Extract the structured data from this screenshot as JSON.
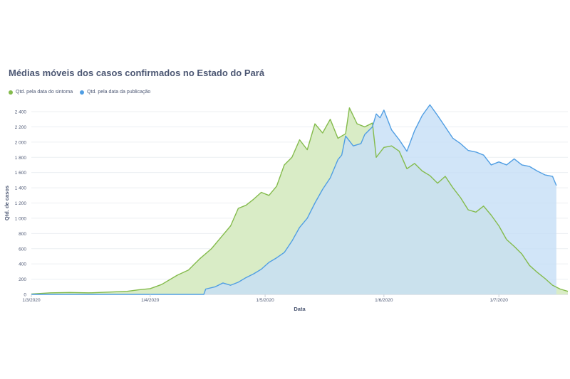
{
  "chart_data": {
    "type": "area",
    "title": "Médias móveis dos casos confirmados no Estado do Pará",
    "xlabel": "Data",
    "ylabel": "Qtd. de casos",
    "ylim": [
      0,
      2400
    ],
    "y_ticks": [
      0,
      200,
      400,
      600,
      800,
      1000,
      1200,
      1400,
      1600,
      1800,
      2000,
      2200,
      2400
    ],
    "y_tick_labels": [
      "0",
      "200",
      "400",
      "600",
      "800",
      "1 000",
      "1 200",
      "1 400",
      "1 600",
      "1 800",
      "2 000",
      "2 200",
      "2 400"
    ],
    "x_ticks": [
      0,
      31,
      61,
      92,
      122
    ],
    "x_tick_labels": [
      "1/3/2020",
      "1/4/2020",
      "1/5/2020",
      "1/6/2020",
      "1/7/2020"
    ],
    "grid": true,
    "legend_position": "top-left",
    "series": [
      {
        "name": "Qtd. pela data do sintoma",
        "color": "#84bb4c",
        "fill": "#d9ecc6",
        "points": [
          [
            0,
            5
          ],
          [
            5,
            20
          ],
          [
            10,
            25
          ],
          [
            15,
            20
          ],
          [
            20,
            30
          ],
          [
            25,
            40
          ],
          [
            28,
            60
          ],
          [
            31,
            75
          ],
          [
            34,
            130
          ],
          [
            38,
            250
          ],
          [
            41,
            320
          ],
          [
            44,
            470
          ],
          [
            47,
            600
          ],
          [
            50,
            780
          ],
          [
            52,
            900
          ],
          [
            54,
            1130
          ],
          [
            56,
            1170
          ],
          [
            58,
            1250
          ],
          [
            60,
            1340
          ],
          [
            62,
            1300
          ],
          [
            64,
            1420
          ],
          [
            66,
            1700
          ],
          [
            68,
            1800
          ],
          [
            70,
            2030
          ],
          [
            72,
            1900
          ],
          [
            74,
            2240
          ],
          [
            76,
            2120
          ],
          [
            78,
            2300
          ],
          [
            80,
            2050
          ],
          [
            82,
            2110
          ],
          [
            83,
            2450
          ],
          [
            85,
            2240
          ],
          [
            87,
            2200
          ],
          [
            89,
            2250
          ],
          [
            90,
            1800
          ],
          [
            92,
            1930
          ],
          [
            94,
            1950
          ],
          [
            96,
            1880
          ],
          [
            98,
            1650
          ],
          [
            100,
            1720
          ],
          [
            102,
            1620
          ],
          [
            104,
            1560
          ],
          [
            106,
            1460
          ],
          [
            108,
            1550
          ],
          [
            110,
            1400
          ],
          [
            112,
            1270
          ],
          [
            114,
            1110
          ],
          [
            116,
            1080
          ],
          [
            118,
            1160
          ],
          [
            120,
            1040
          ],
          [
            122,
            900
          ],
          [
            124,
            720
          ],
          [
            126,
            630
          ],
          [
            128,
            530
          ],
          [
            130,
            380
          ],
          [
            132,
            290
          ],
          [
            134,
            210
          ],
          [
            136,
            120
          ],
          [
            138,
            70
          ],
          [
            140,
            40
          ]
        ]
      },
      {
        "name": "Qtd. pela data da publicação",
        "color": "#509ee3",
        "fill": "#c5dff6",
        "points": [
          [
            0,
            0
          ],
          [
            45,
            0
          ],
          [
            45.5,
            70
          ],
          [
            48,
            100
          ],
          [
            50,
            150
          ],
          [
            52,
            120
          ],
          [
            54,
            160
          ],
          [
            56,
            220
          ],
          [
            58,
            270
          ],
          [
            60,
            330
          ],
          [
            62,
            420
          ],
          [
            64,
            480
          ],
          [
            66,
            550
          ],
          [
            68,
            700
          ],
          [
            70,
            880
          ],
          [
            72,
            1000
          ],
          [
            74,
            1200
          ],
          [
            76,
            1380
          ],
          [
            78,
            1530
          ],
          [
            80,
            1770
          ],
          [
            81,
            1830
          ],
          [
            82,
            2080
          ],
          [
            84,
            1950
          ],
          [
            86,
            1980
          ],
          [
            87,
            2100
          ],
          [
            89,
            2200
          ],
          [
            90,
            2370
          ],
          [
            91,
            2320
          ],
          [
            92,
            2420
          ],
          [
            94,
            2160
          ],
          [
            96,
            2030
          ],
          [
            98,
            1880
          ],
          [
            100,
            2150
          ],
          [
            102,
            2350
          ],
          [
            104,
            2490
          ],
          [
            106,
            2350
          ],
          [
            108,
            2200
          ],
          [
            110,
            2050
          ],
          [
            112,
            1980
          ],
          [
            114,
            1890
          ],
          [
            116,
            1870
          ],
          [
            118,
            1830
          ],
          [
            120,
            1700
          ],
          [
            122,
            1740
          ],
          [
            124,
            1700
          ],
          [
            126,
            1780
          ],
          [
            128,
            1700
          ],
          [
            130,
            1680
          ],
          [
            132,
            1620
          ],
          [
            134,
            1570
          ],
          [
            136,
            1550
          ],
          [
            137,
            1430
          ]
        ]
      }
    ]
  },
  "x_domain": [
    0,
    140
  ]
}
